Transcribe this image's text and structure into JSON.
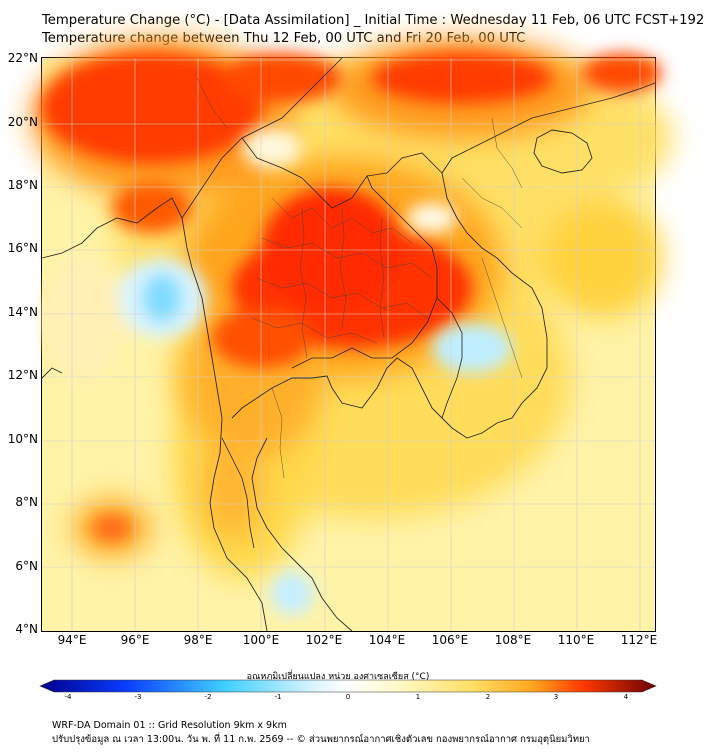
{
  "header": {
    "title_line1": "Temperature Change (°C) - [Data Assimilation] _ Initial Time : Wednesday 11 Feb, 06 UTC FCST+192",
    "title_line2": "Temperature change between Thu 12 Feb, 00 UTC and Fri 20 Feb, 00 UTC"
  },
  "map": {
    "lat_labels": [
      "22°N",
      "20°N",
      "18°N",
      "16°N",
      "14°N",
      "12°N",
      "10°N",
      "8°N",
      "6°N",
      "4°N"
    ],
    "lon_labels": [
      "94°E",
      "96°E",
      "98°E",
      "100°E",
      "102°E",
      "104°E",
      "106°E",
      "108°E",
      "110°E",
      "112°E"
    ]
  },
  "colorbar": {
    "title": "อุณหภูมิเปลี่ยนแปลง หน่วย องศาเซลเซียส (°C)",
    "ticks": [
      "-4",
      "-3",
      "-2",
      "-1",
      "0",
      "1",
      "2",
      "3",
      "4"
    ],
    "colors": {
      "cold_end": "#00008b",
      "cold": "#1f6fff",
      "cool": "#3fd0ff",
      "neutral": "#ffffff",
      "warm": "#ffe66a",
      "hot": "#ff6a00",
      "hot_end": "#7a0000"
    }
  },
  "footer": {
    "line1": "WRF-DA Domain 01 :: Grid Resolution 9km x 9km",
    "line2": "ปรับปรุงข้อมูล ณ เวลา 13:00น. วัน พ. ที่ 11 ก.พ. 2569 -- © ส่วนพยากรณ์อากาศเชิงตัวเลข กองพยากรณ์อากาศ กรมอุตุนิยมวิทยา"
  }
}
